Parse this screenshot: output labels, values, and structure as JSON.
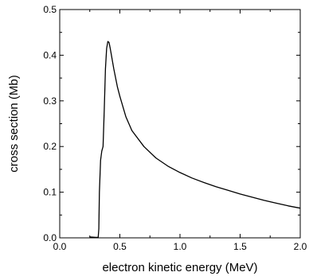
{
  "chart_data": {
    "type": "line",
    "xlabel": "electron kinetic energy (MeV)",
    "ylabel": "cross section (Mb)",
    "xlim": [
      0.0,
      2.0
    ],
    "ylim": [
      0.0,
      0.5
    ],
    "x_ticks": [
      "0.0",
      "0.5",
      "1.0",
      "1.5",
      "2.0"
    ],
    "y_ticks": [
      "0.0",
      "0.1",
      "0.2",
      "0.3",
      "0.4",
      "0.5"
    ],
    "grid": false,
    "legend": "none",
    "series": [
      {
        "color": "#000000",
        "x": [
          0.25,
          0.3,
          0.32,
          0.325,
          0.33,
          0.34,
          0.35,
          0.36,
          0.37,
          0.38,
          0.39,
          0.4,
          0.41,
          0.42,
          0.43,
          0.45,
          0.48,
          0.5,
          0.55,
          0.6,
          0.7,
          0.8,
          0.9,
          1.0,
          1.1,
          1.2,
          1.3,
          1.4,
          1.5,
          1.6,
          1.7,
          1.8,
          1.9,
          2.0
        ],
        "y": [
          0.002,
          0.001,
          0.001,
          0.02,
          0.1,
          0.17,
          0.19,
          0.2,
          0.28,
          0.37,
          0.415,
          0.43,
          0.428,
          0.415,
          0.4,
          0.37,
          0.33,
          0.31,
          0.265,
          0.235,
          0.2,
          0.175,
          0.157,
          0.143,
          0.131,
          0.121,
          0.112,
          0.104,
          0.096,
          0.089,
          0.082,
          0.076,
          0.07,
          0.065
        ]
      }
    ]
  }
}
